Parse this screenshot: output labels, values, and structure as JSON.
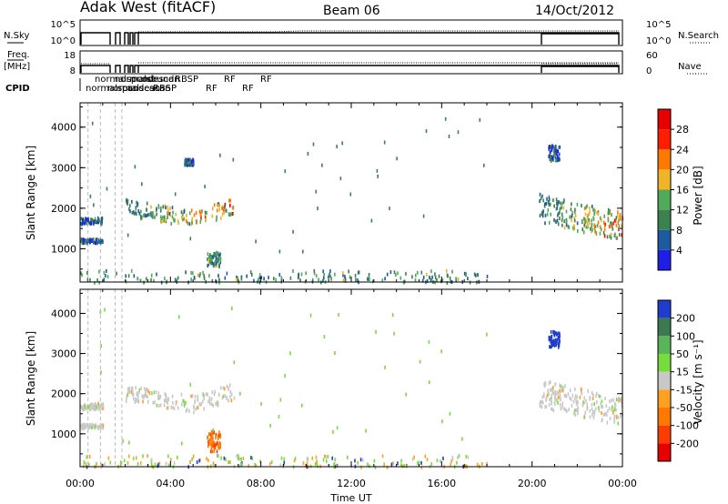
{
  "header": {
    "station": "Adak West (fitACF)",
    "beam": "Beam 06",
    "date": "14/Oct/2012"
  },
  "top_panels": {
    "nsky": {
      "label": "N.Sky",
      "right_label": "N.Search",
      "left_ticks": [
        "10^5",
        "10^0"
      ],
      "right_ticks": [
        "10^5",
        "10^0"
      ]
    },
    "freq": {
      "label_line1": "Freq.",
      "label_line2": "[MHz]",
      "right_label": "Nave",
      "left_ticks": [
        "18",
        "8"
      ],
      "right_ticks": [
        "60",
        "0"
      ]
    },
    "cpid": {
      "label": "CPID",
      "labels": [
        "normalscan",
        "normalsound",
        "normalscan",
        "normalsound",
        "pcodescan",
        "pcodescan",
        "RBSP",
        "RBSP",
        "RF",
        "RF",
        "RF",
        "RF"
      ]
    }
  },
  "chart_data": [
    {
      "type": "heatmap",
      "name": "power",
      "xlabel": "",
      "ylabel": "Slant Range [km]",
      "y_ticks": [
        "1000",
        "2000",
        "3000",
        "4000"
      ],
      "ylim": [
        180,
        4600
      ],
      "xlim_hours": [
        0,
        24
      ],
      "colorbar": {
        "label": "Power [dB]",
        "ticks": [
          "4",
          "8",
          "12",
          "16",
          "20",
          "24",
          "28"
        ],
        "colors": [
          "#1e1ee6",
          "#1e5aa0",
          "#3c8250",
          "#50aa5a",
          "#f0b428",
          "#ff7800",
          "#ff1e00",
          "#e60000"
        ]
      },
      "data_gaps_hours": [
        [
          18.0,
          20.3
        ]
      ],
      "echo_regions": [
        {
          "t": [
            0.0,
            1.0
          ],
          "range_km": [
            1650,
            1800
          ],
          "level": 1
        },
        {
          "t": [
            0.0,
            1.0
          ],
          "range_km": [
            1180,
            1280
          ],
          "level": 1
        },
        {
          "t": [
            2.0,
            6.8
          ],
          "range_km": [
            1500,
            2300
          ],
          "level": 4
        },
        {
          "t": [
            4.6,
            5.0
          ],
          "range_km": [
            3100,
            3250
          ],
          "level": 1
        },
        {
          "t": [
            5.6,
            6.2
          ],
          "range_km": [
            600,
            950
          ],
          "level": 2
        },
        {
          "t": [
            20.3,
            24.0
          ],
          "range_km": [
            1200,
            2500
          ],
          "level": 5
        },
        {
          "t": [
            20.7,
            21.2
          ],
          "range_km": [
            3200,
            3600
          ],
          "level": 1
        },
        {
          "t": [
            0.0,
            18.0
          ],
          "range_km": [
            180,
            500
          ],
          "level": 2
        }
      ]
    },
    {
      "type": "heatmap",
      "name": "velocity",
      "xlabel": "Time UT",
      "ylabel": "Slant Range [km]",
      "x_ticks": [
        "00:00",
        "04:00",
        "08:00",
        "12:00",
        "16:00",
        "20:00",
        "00:00"
      ],
      "y_ticks": [
        "1000",
        "2000",
        "3000",
        "4000"
      ],
      "ylim": [
        180,
        4600
      ],
      "xlim_hours": [
        0,
        24
      ],
      "colorbar": {
        "label": "Velocity [m s⁻¹]",
        "ticks": [
          "200",
          "100",
          "50",
          "15",
          "-15",
          "-50",
          "-100",
          "-200"
        ],
        "colors": [
          "#1e3ccd",
          "#3c7850",
          "#5ab45a",
          "#78dc3c",
          "#c8c8c8",
          "#ffa020",
          "#ff7800",
          "#ff3c00",
          "#e60000"
        ]
      },
      "data_gaps_hours": [
        [
          18.0,
          20.3
        ]
      ],
      "echo_regions": [
        {
          "t": [
            0.0,
            1.0
          ],
          "range_km": [
            1650,
            1800
          ],
          "class": "ground"
        },
        {
          "t": [
            0.0,
            1.0
          ],
          "range_km": [
            1180,
            1280
          ],
          "class": "ground"
        },
        {
          "t": [
            2.0,
            6.8
          ],
          "range_km": [
            1500,
            2300
          ],
          "class": "ground"
        },
        {
          "t": [
            5.6,
            6.2
          ],
          "range_km": [
            600,
            1100
          ],
          "class": "away"
        },
        {
          "t": [
            20.7,
            21.2
          ],
          "range_km": [
            3200,
            3600
          ],
          "class": "toward"
        },
        {
          "t": [
            20.3,
            24.0
          ],
          "range_km": [
            1200,
            2500
          ],
          "class": "ground"
        },
        {
          "t": [
            0.0,
            18.0
          ],
          "range_km": [
            180,
            500
          ],
          "class": "low"
        }
      ]
    }
  ]
}
